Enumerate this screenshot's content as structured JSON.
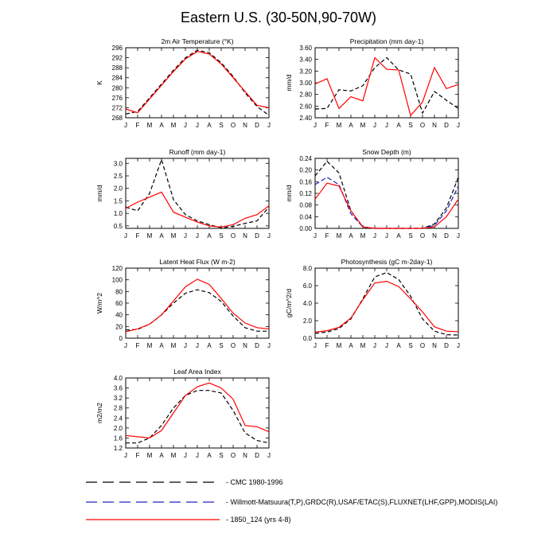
{
  "figure_title": "Eastern U.S. (30-50N,90-70W)",
  "months": [
    "J",
    "F",
    "M",
    "A",
    "M",
    "J",
    "J",
    "A",
    "S",
    "O",
    "N",
    "D",
    "J"
  ],
  "colors": {
    "cmc": "#000000",
    "obs": "#2020c0",
    "model": "#ff0000",
    "axis": "#000000"
  },
  "legend": [
    {
      "key": "cmc",
      "label": "CMC 1980-1996",
      "color": "#000000",
      "dash": "dashed"
    },
    {
      "key": "obs",
      "label": "Willmott-Matsuura(T,P),GRDC(R),USAF/ETAC(S),FLUXNET(LHF,GPP),MODIS(LAI)",
      "color": "#2020c0",
      "dash": "dashed"
    },
    {
      "key": "model",
      "label": "1850_124 (yrs 4-8)",
      "color": "#ff0000",
      "dash": "solid"
    }
  ],
  "chart_data": [
    {
      "type": "line",
      "title": "2m Air Temperature (°K)",
      "ylabel": "K",
      "ylim": [
        268,
        296
      ],
      "yticks": [
        "268",
        "272",
        "276",
        "280",
        "284",
        "288",
        "292",
        "296"
      ],
      "series": [
        {
          "name": "CMC 1980-1996",
          "key": "cmc",
          "values": [
            269.5,
            270.5,
            276.0,
            281.5,
            287.0,
            292.0,
            295.0,
            294.0,
            290.0,
            284.5,
            278.0,
            272.5,
            269.0
          ]
        },
        {
          "name": "1850_124 (yrs 4-8)",
          "key": "model",
          "values": [
            271.5,
            270.0,
            275.5,
            281.0,
            286.5,
            291.5,
            294.5,
            293.5,
            289.5,
            284.0,
            278.5,
            273.0,
            272.0
          ]
        }
      ]
    },
    {
      "type": "line",
      "title": "Precipitation (mm day-1)",
      "ylabel": "mm/d",
      "ylim": [
        2.4,
        3.6
      ],
      "yticks": [
        "2.40",
        "2.60",
        "2.80",
        "3.00",
        "3.20",
        "3.40",
        "3.60"
      ],
      "series": [
        {
          "name": "CMC 1980-1996",
          "key": "cmc",
          "values": [
            2.55,
            2.56,
            2.88,
            2.86,
            2.95,
            3.26,
            3.43,
            3.22,
            3.15,
            2.48,
            2.85,
            2.7,
            2.56
          ]
        },
        {
          "name": "1850_124 (yrs 4-8)",
          "key": "model",
          "values": [
            2.98,
            3.07,
            2.56,
            2.76,
            2.69,
            3.43,
            3.23,
            3.22,
            2.44,
            2.67,
            3.26,
            2.9,
            2.97
          ]
        }
      ]
    },
    {
      "type": "line",
      "title": "Runoff (mm day-1)",
      "ylabel": "mm/d",
      "ylim": [
        0.4,
        3.2
      ],
      "yticks": [
        "0.5",
        "1.0",
        "1.5",
        "2.0",
        "2.5",
        "3.0"
      ],
      "series": [
        {
          "name": "CMC 1980-1996",
          "key": "cmc",
          "values": [
            1.25,
            1.1,
            1.8,
            3.15,
            1.55,
            0.95,
            0.7,
            0.55,
            0.42,
            0.48,
            0.6,
            0.7,
            1.25
          ]
        },
        {
          "name": "1850_124 (yrs 4-8)",
          "key": "model",
          "values": [
            1.2,
            1.45,
            1.65,
            1.85,
            1.05,
            0.85,
            0.65,
            0.5,
            0.45,
            0.55,
            0.8,
            0.95,
            1.3
          ]
        }
      ]
    },
    {
      "type": "line",
      "title": "Snow Depth (m)",
      "ylabel": "mm/d",
      "ylim": [
        0,
        0.24
      ],
      "yticks": [
        "0.00",
        "0.04",
        "0.08",
        "0.12",
        "0.16",
        "0.20",
        "0.24"
      ],
      "series": [
        {
          "name": "CMC 1980-1996",
          "key": "cmc",
          "values": [
            0.18,
            0.23,
            0.19,
            0.06,
            0.005,
            0,
            0,
            0,
            0,
            0,
            0.015,
            0.07,
            0.175
          ]
        },
        {
          "name": "Willmott-Matsuura(T,P),GRDC(R),USAF/ETAC(S),FLUXNET(LHF,GPP),MODIS(LAI)",
          "key": "obs",
          "values": [
            0.15,
            0.175,
            0.15,
            0.05,
            0.005,
            0,
            0,
            0,
            0,
            0,
            0.01,
            0.06,
            0.145
          ]
        },
        {
          "name": "1850_124 (yrs 4-8)",
          "key": "model",
          "values": [
            0.1,
            0.155,
            0.145,
            0.06,
            0.005,
            0,
            0,
            0,
            0,
            0,
            0.005,
            0.04,
            0.1
          ]
        }
      ]
    },
    {
      "type": "line",
      "title": "Latent Heat Flux (W m-2)",
      "ylabel": "W/m^2",
      "ylim": [
        0,
        120
      ],
      "yticks": [
        "0",
        "20",
        "40",
        "60",
        "80",
        "100",
        "120"
      ],
      "series": [
        {
          "name": "CMC 1980-1996",
          "key": "cmc",
          "values": [
            14,
            15,
            24,
            40,
            60,
            77,
            83,
            78,
            63,
            38,
            18,
            12,
            12
          ]
        },
        {
          "name": "1850_124 (yrs 4-8)",
          "key": "model",
          "values": [
            11,
            16,
            24,
            40,
            64,
            88,
            101,
            92,
            68,
            43,
            26,
            18,
            16
          ]
        }
      ]
    },
    {
      "type": "line",
      "title": "Photosynthesis (gC m-2day-1)",
      "ylabel": "gC/m^2/d",
      "ylim": [
        0,
        8
      ],
      "yticks": [
        "0.0",
        "2.0",
        "4.0",
        "6.0",
        "8.0"
      ],
      "series": [
        {
          "name": "CMC 1980-1996",
          "key": "cmc",
          "values": [
            0.55,
            0.7,
            1.1,
            2.2,
            4.5,
            7.0,
            7.5,
            6.7,
            4.8,
            2.2,
            0.8,
            0.4,
            0.35
          ]
        },
        {
          "name": "1850_124 (yrs 4-8)",
          "key": "model",
          "values": [
            0.7,
            0.85,
            1.25,
            2.3,
            4.4,
            6.3,
            6.5,
            5.9,
            4.5,
            3.0,
            1.3,
            0.8,
            0.75
          ]
        }
      ]
    },
    {
      "type": "line",
      "title": "Leaf Area Index",
      "ylabel": "m2/m2",
      "ylim": [
        1.2,
        4.0
      ],
      "yticks": [
        "1.2",
        "1.6",
        "2.0",
        "2.4",
        "2.8",
        "3.2",
        "3.6",
        "4.0"
      ],
      "series": [
        {
          "name": "CMC 1980-1996",
          "key": "cmc",
          "values": [
            1.4,
            1.4,
            1.6,
            2.1,
            2.8,
            3.3,
            3.5,
            3.5,
            3.4,
            2.7,
            1.8,
            1.5,
            1.4
          ]
        },
        {
          "name": "1850_124 (yrs 4-8)",
          "key": "model",
          "values": [
            1.7,
            1.65,
            1.6,
            1.9,
            2.6,
            3.3,
            3.65,
            3.8,
            3.6,
            3.15,
            2.1,
            2.05,
            1.85
          ]
        }
      ]
    }
  ]
}
